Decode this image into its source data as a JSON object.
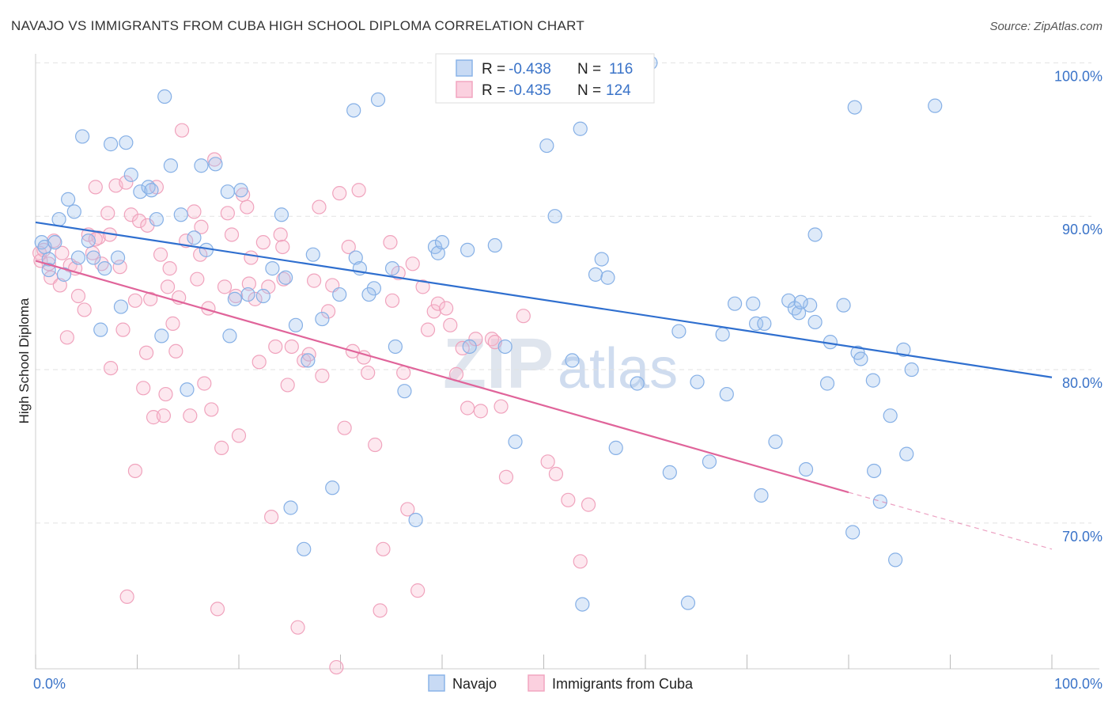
{
  "title": "NAVAJO VS IMMIGRANTS FROM CUBA HIGH SCHOOL DIPLOMA CORRELATION CHART",
  "source": "Source: ZipAtlas.com",
  "watermark": {
    "zip": "ZIP",
    "atlas": "atlas"
  },
  "legend": {
    "navajo": {
      "r_label": "R =",
      "r_value": "-0.438",
      "n_label": "N =",
      "n_value": "116"
    },
    "cuba": {
      "r_label": "R =",
      "r_value": "-0.435",
      "n_label": "N =",
      "n_value": "124"
    }
  },
  "bottom_legend": {
    "navajo": "Navajo",
    "cuba": "Immigrants from Cuba"
  },
  "chart_data": {
    "type": "scatter",
    "title": "NAVAJO VS IMMIGRANTS FROM CUBA HIGH SCHOOL DIPLOMA CORRELATION CHART",
    "xlabel": "",
    "ylabel": "High School Diploma",
    "x_tick_labels": [
      "0.0%",
      "100.0%"
    ],
    "y_tick_labels": [
      "100.0%",
      "90.0%",
      "80.0%",
      "70.0%"
    ],
    "y_ticks": [
      100,
      90,
      80,
      70
    ],
    "xlim": [
      0,
      100
    ],
    "ylim": [
      60.5,
      101
    ],
    "grid": true,
    "legend_position": "top-center",
    "colors": {
      "navajo": "#8ab4e8",
      "navajo_line": "#2f6fcf",
      "cuba": "#f2a6c0",
      "cuba_line": "#e0649a"
    },
    "series": [
      {
        "name": "Navajo",
        "trend": {
          "x": [
            0,
            100
          ],
          "y": [
            89.6,
            79.5
          ]
        },
        "points": [
          [
            0.6,
            88.3
          ],
          [
            0.9,
            88.0
          ],
          [
            1.3,
            87.2
          ],
          [
            1.3,
            86.5
          ],
          [
            1.9,
            88.3
          ],
          [
            2.3,
            89.8
          ],
          [
            2.8,
            86.2
          ],
          [
            3.2,
            91.1
          ],
          [
            3.8,
            90.3
          ],
          [
            4.2,
            87.3
          ],
          [
            4.6,
            95.2
          ],
          [
            5.2,
            88.4
          ],
          [
            5.7,
            87.3
          ],
          [
            6.4,
            82.6
          ],
          [
            6.8,
            86.6
          ],
          [
            7.4,
            94.7
          ],
          [
            8.1,
            87.3
          ],
          [
            8.4,
            84.1
          ],
          [
            8.9,
            94.8
          ],
          [
            9.4,
            92.7
          ],
          [
            10.3,
            91.6
          ],
          [
            11.1,
            91.9
          ],
          [
            11.4,
            91.7
          ],
          [
            11.9,
            89.8
          ],
          [
            12.4,
            82.2
          ],
          [
            12.7,
            97.8
          ],
          [
            13.3,
            93.3
          ],
          [
            14.3,
            90.1
          ],
          [
            14.9,
            78.7
          ],
          [
            15.6,
            88.6
          ],
          [
            16.3,
            93.3
          ],
          [
            16.8,
            87.8
          ],
          [
            17.7,
            93.4
          ],
          [
            18.9,
            91.6
          ],
          [
            19.1,
            82.2
          ],
          [
            19.6,
            84.6
          ],
          [
            20.2,
            91.7
          ],
          [
            20.9,
            84.9
          ],
          [
            22.4,
            84.8
          ],
          [
            23.3,
            86.6
          ],
          [
            24.2,
            90.1
          ],
          [
            24.6,
            86.0
          ],
          [
            25.1,
            71.0
          ],
          [
            25.6,
            82.9
          ],
          [
            26.4,
            68.3
          ],
          [
            26.8,
            80.6
          ],
          [
            27.3,
            87.5
          ],
          [
            28.2,
            83.3
          ],
          [
            29.2,
            72.3
          ],
          [
            29.9,
            84.9
          ],
          [
            31.3,
            96.9
          ],
          [
            31.5,
            87.3
          ],
          [
            31.9,
            86.6
          ],
          [
            33.3,
            85.3
          ],
          [
            32.8,
            84.9
          ],
          [
            33.7,
            97.6
          ],
          [
            35.1,
            86.6
          ],
          [
            35.4,
            81.5
          ],
          [
            36.3,
            78.6
          ],
          [
            37.4,
            70.2
          ],
          [
            39.3,
            88.0
          ],
          [
            39.6,
            87.6
          ],
          [
            40.0,
            88.3
          ],
          [
            42.5,
            87.8
          ],
          [
            42.7,
            81.5
          ],
          [
            44.1,
            100.0
          ],
          [
            45.2,
            88.1
          ],
          [
            46.2,
            81.5
          ],
          [
            47.2,
            75.3
          ],
          [
            48.0,
            100.0
          ],
          [
            48.4,
            99.9
          ],
          [
            50.3,
            94.6
          ],
          [
            51.1,
            90.0
          ],
          [
            52.8,
            80.6
          ],
          [
            53.6,
            95.7
          ],
          [
            53.8,
            64.7
          ],
          [
            55.1,
            86.2
          ],
          [
            55.7,
            87.2
          ],
          [
            56.3,
            86.0
          ],
          [
            57.1,
            74.9
          ],
          [
            59.2,
            79.1
          ],
          [
            60.5,
            100.0
          ],
          [
            62.4,
            73.3
          ],
          [
            63.3,
            82.5
          ],
          [
            64.2,
            64.8
          ],
          [
            65.1,
            79.2
          ],
          [
            66.3,
            74.0
          ],
          [
            67.6,
            82.3
          ],
          [
            68.0,
            78.4
          ],
          [
            68.8,
            84.3
          ],
          [
            70.6,
            84.3
          ],
          [
            70.9,
            83.0
          ],
          [
            71.4,
            71.8
          ],
          [
            71.7,
            83.0
          ],
          [
            72.8,
            75.3
          ],
          [
            74.1,
            84.5
          ],
          [
            74.7,
            84.0
          ],
          [
            75.1,
            83.7
          ],
          [
            76.2,
            84.2
          ],
          [
            75.8,
            73.5
          ],
          [
            75.3,
            84.4
          ],
          [
            76.7,
            83.1
          ],
          [
            76.7,
            88.8
          ],
          [
            77.9,
            79.1
          ],
          [
            78.2,
            81.8
          ],
          [
            79.5,
            84.2
          ],
          [
            80.4,
            69.4
          ],
          [
            80.9,
            81.1
          ],
          [
            81.2,
            80.7
          ],
          [
            82.4,
            79.3
          ],
          [
            82.5,
            73.4
          ],
          [
            83.1,
            71.4
          ],
          [
            84.1,
            77.0
          ],
          [
            84.6,
            67.6
          ],
          [
            85.4,
            81.3
          ],
          [
            85.7,
            74.5
          ],
          [
            86.2,
            80.0
          ],
          [
            80.6,
            97.1
          ],
          [
            88.5,
            97.2
          ]
        ]
      },
      {
        "name": "Immigrants from Cuba",
        "trend": {
          "x": [
            0,
            80
          ],
          "y": [
            87.1,
            72.0
          ]
        },
        "trend_dashed": {
          "x": [
            80,
            100
          ],
          "y": [
            72.0,
            68.3
          ]
        },
        "points": [
          [
            0.4,
            87.6
          ],
          [
            0.5,
            87.1
          ],
          [
            0.8,
            87.8
          ],
          [
            1.3,
            86.9
          ],
          [
            1.5,
            86.0
          ],
          [
            1.8,
            88.4
          ],
          [
            2.4,
            85.5
          ],
          [
            2.6,
            87.6
          ],
          [
            3.1,
            82.1
          ],
          [
            3.4,
            86.8
          ],
          [
            3.9,
            86.6
          ],
          [
            4.2,
            84.8
          ],
          [
            4.8,
            83.9
          ],
          [
            5.2,
            88.8
          ],
          [
            5.6,
            87.6
          ],
          [
            5.9,
            91.9
          ],
          [
            6.2,
            88.6
          ],
          [
            6.5,
            86.9
          ],
          [
            7.1,
            90.2
          ],
          [
            7.4,
            80.1
          ],
          [
            7.9,
            92.0
          ],
          [
            8.3,
            86.7
          ],
          [
            8.6,
            82.6
          ],
          [
            8.9,
            92.2
          ],
          [
            9.0,
            65.2
          ],
          [
            9.4,
            90.1
          ],
          [
            9.8,
            73.4
          ],
          [
            10.2,
            89.7
          ],
          [
            10.6,
            78.8
          ],
          [
            10.9,
            81.1
          ],
          [
            11.3,
            84.6
          ],
          [
            11.6,
            76.9
          ],
          [
            11.9,
            91.9
          ],
          [
            12.3,
            87.5
          ],
          [
            12.6,
            77.0
          ],
          [
            12.8,
            78.4
          ],
          [
            13.2,
            86.6
          ],
          [
            13.5,
            83.0
          ],
          [
            13.8,
            81.2
          ],
          [
            14.1,
            84.7
          ],
          [
            14.4,
            95.6
          ],
          [
            14.8,
            88.4
          ],
          [
            15.2,
            77.0
          ],
          [
            15.6,
            90.3
          ],
          [
            15.9,
            85.9
          ],
          [
            16.3,
            89.3
          ],
          [
            16.6,
            79.1
          ],
          [
            17.0,
            84.0
          ],
          [
            17.3,
            77.4
          ],
          [
            17.6,
            93.7
          ],
          [
            17.9,
            64.4
          ],
          [
            18.3,
            74.9
          ],
          [
            18.6,
            85.4
          ],
          [
            18.9,
            90.2
          ],
          [
            19.3,
            88.8
          ],
          [
            19.7,
            84.8
          ],
          [
            20.0,
            75.7
          ],
          [
            20.4,
            91.4
          ],
          [
            20.8,
            90.6
          ],
          [
            21.2,
            87.3
          ],
          [
            21.6,
            84.6
          ],
          [
            22.0,
            80.5
          ],
          [
            22.4,
            88.3
          ],
          [
            22.9,
            85.4
          ],
          [
            23.2,
            70.4
          ],
          [
            23.6,
            81.5
          ],
          [
            24.1,
            88.8
          ],
          [
            24.4,
            85.9
          ],
          [
            24.8,
            79.0
          ],
          [
            25.2,
            81.5
          ],
          [
            25.8,
            63.2
          ],
          [
            26.4,
            80.6
          ],
          [
            26.9,
            81.0
          ],
          [
            27.4,
            85.8
          ],
          [
            27.9,
            90.6
          ],
          [
            28.2,
            79.6
          ],
          [
            28.8,
            83.8
          ],
          [
            29.2,
            85.5
          ],
          [
            29.6,
            60.6
          ],
          [
            29.9,
            91.5
          ],
          [
            30.4,
            76.2
          ],
          [
            30.8,
            88.0
          ],
          [
            31.2,
            81.2
          ],
          [
            31.8,
            91.7
          ],
          [
            32.3,
            80.8
          ],
          [
            32.7,
            79.8
          ],
          [
            33.4,
            75.1
          ],
          [
            33.9,
            64.3
          ],
          [
            34.2,
            68.3
          ],
          [
            35.1,
            84.5
          ],
          [
            35.7,
            86.3
          ],
          [
            36.2,
            79.8
          ],
          [
            36.6,
            70.9
          ],
          [
            37.1,
            86.9
          ],
          [
            37.6,
            65.6
          ],
          [
            38.1,
            85.4
          ],
          [
            38.6,
            82.6
          ],
          [
            39.2,
            83.8
          ],
          [
            39.6,
            84.3
          ],
          [
            40.4,
            84.0
          ],
          [
            40.8,
            82.9
          ],
          [
            41.4,
            79.7
          ],
          [
            42.0,
            81.4
          ],
          [
            42.5,
            77.5
          ],
          [
            43.3,
            82.0
          ],
          [
            43.8,
            77.3
          ],
          [
            44.9,
            82.0
          ],
          [
            45.2,
            81.8
          ],
          [
            45.8,
            77.6
          ],
          [
            46.3,
            73.0
          ],
          [
            48.0,
            83.5
          ],
          [
            50.4,
            74.0
          ],
          [
            51.2,
            73.2
          ],
          [
            52.4,
            71.5
          ],
          [
            53.6,
            67.5
          ],
          [
            54.4,
            71.2
          ],
          [
            16.2,
            87.5
          ],
          [
            13.0,
            85.4
          ],
          [
            11.0,
            89.4
          ],
          [
            5.9,
            88.5
          ],
          [
            21.0,
            85.6
          ],
          [
            7.3,
            88.8
          ],
          [
            9.8,
            84.5
          ],
          [
            24.3,
            88.0
          ],
          [
            34.9,
            88.3
          ]
        ]
      }
    ]
  }
}
